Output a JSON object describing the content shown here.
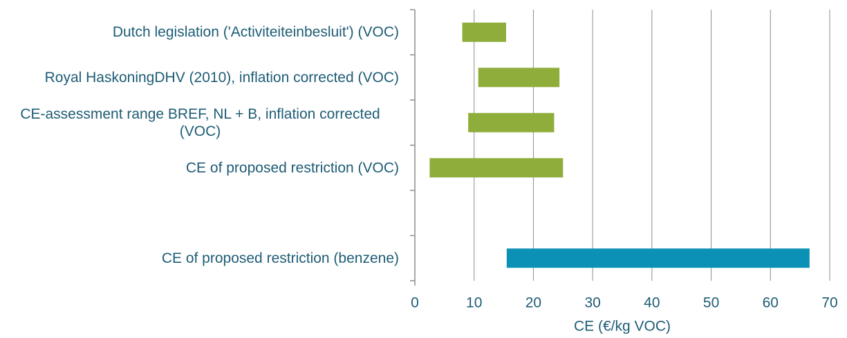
{
  "chart_data": {
    "type": "range-bar",
    "categories": [
      "Dutch legislation ('Activiteiteinbesluit') (VOC)",
      "Royal HaskoningDHV (2010), inflation corrected (VOC)",
      "CE-assessment range BREF, NL + B, inflation corrected (VOC)",
      "CE of proposed restriction (VOC)",
      null,
      "CE of proposed restriction (benzene)"
    ],
    "starts": [
      8,
      10.7,
      9,
      2.5,
      null,
      15.5
    ],
    "ends": [
      15.4,
      24.4,
      23.5,
      25,
      null,
      66.6
    ],
    "colors": [
      "#8fad3a",
      "#8fad3a",
      "#8fad3a",
      "#8fad3a",
      null,
      "#0b91b5"
    ],
    "xlabel": "CE (€/kg VOC)",
    "xlim": [
      0,
      70
    ],
    "xticks": [
      0,
      10,
      20,
      30,
      40,
      50,
      60,
      70
    ],
    "grid": true
  }
}
